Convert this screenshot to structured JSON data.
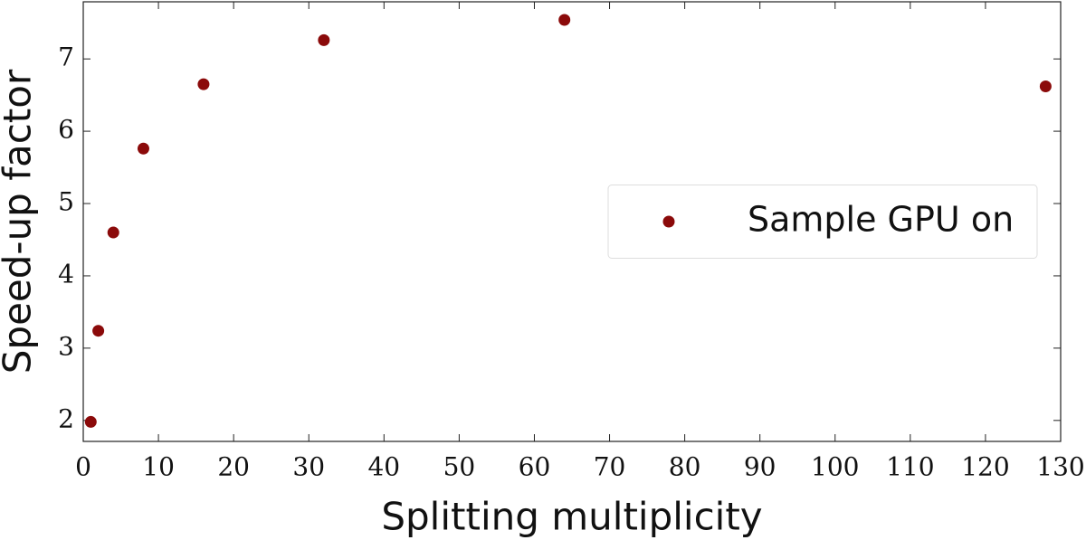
{
  "chart_data": {
    "type": "scatter",
    "x_label": "Splitting multiplicity",
    "y_label": "Speed-up factor",
    "series": [
      {
        "name": "Sample GPU on",
        "color": "#8b0a0a",
        "x": [
          1,
          2,
          4,
          8,
          16,
          32,
          64,
          128
        ],
        "values": [
          1.98,
          3.24,
          4.6,
          5.76,
          6.65,
          7.26,
          7.54,
          6.62
        ]
      }
    ],
    "xlim": [
      0,
      130
    ],
    "xticks": [
      0,
      10,
      20,
      30,
      40,
      50,
      60,
      70,
      80,
      90,
      100,
      110,
      120,
      130
    ],
    "ylim": [
      1.71,
      7.79
    ],
    "yticks": [
      2,
      3,
      4,
      5,
      6,
      7
    ],
    "grid": false,
    "legend": "center right"
  }
}
